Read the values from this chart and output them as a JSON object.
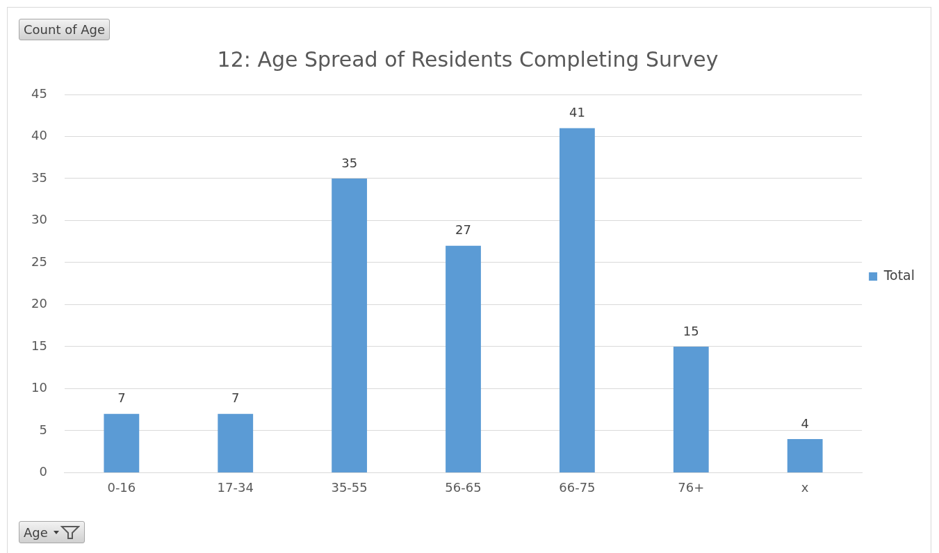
{
  "chart_data": {
    "type": "bar",
    "title": "12: Age Spread of Residents Completing Survey",
    "categories": [
      "0-16",
      "17-34",
      "35-55",
      "56-65",
      "66-75",
      "76+",
      "x"
    ],
    "series": [
      {
        "name": "Total",
        "color": "#5b9bd5",
        "values": [
          7,
          7,
          35,
          27,
          41,
          15,
          4
        ]
      }
    ],
    "ylim": [
      0,
      45
    ],
    "yticks": [
      0,
      5,
      10,
      15,
      20,
      25,
      30,
      35,
      40,
      45
    ],
    "grid": "y",
    "legend": "right",
    "data_labels": true,
    "annotations": [
      "Count of Age",
      "Age"
    ]
  }
}
